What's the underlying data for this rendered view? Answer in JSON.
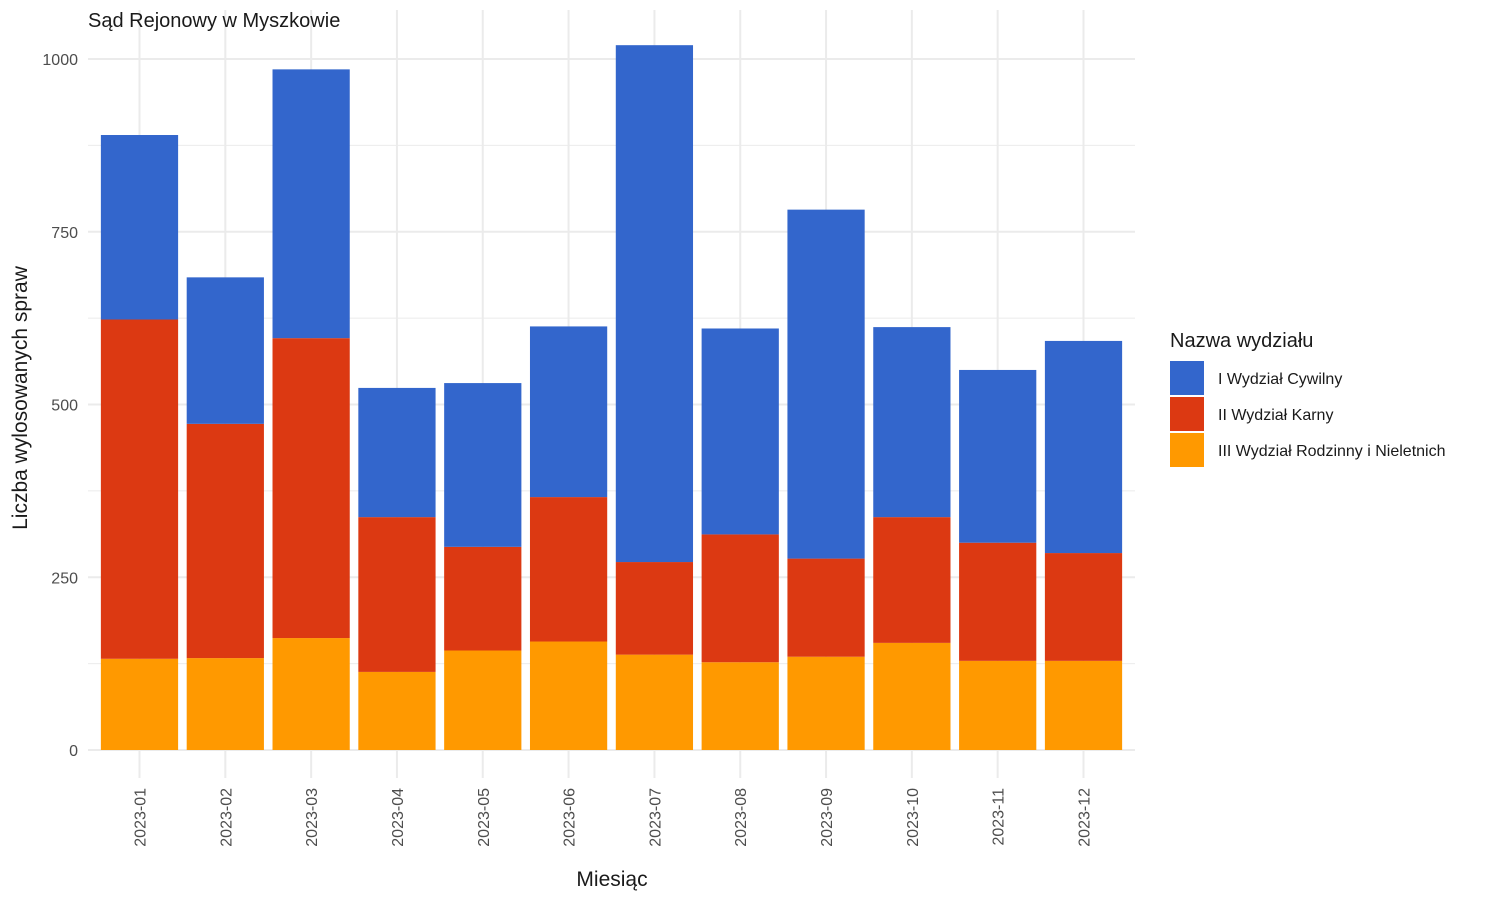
{
  "chart_data": {
    "type": "bar",
    "stacked": true,
    "title": "Sąd Rejonowy w Myszkowie",
    "xlabel": "Miesiąc",
    "ylabel": "Liczba wylosowanych spraw",
    "ylim": [
      0,
      1050
    ],
    "yticks": [
      "0",
      "250",
      "500",
      "750",
      "1000"
    ],
    "grid": true,
    "legend_position": "right",
    "legend_title": "Nazwa wydziału",
    "categories": [
      "2023-01",
      "2023-02",
      "2023-03",
      "2023-04",
      "2023-05",
      "2023-06",
      "2023-07",
      "2023-08",
      "2023-09",
      "2023-10",
      "2023-11",
      "2023-12"
    ],
    "series": [
      {
        "name": "I Wydział Cywilny",
        "color": "#3366CC",
        "values": [
          267,
          212,
          389,
          187,
          237,
          247,
          748,
          298,
          505,
          275,
          250,
          307
        ]
      },
      {
        "name": "II Wydział Karny",
        "color": "#DC3912",
        "values": [
          491,
          339,
          434,
          224,
          150,
          209,
          134,
          185,
          142,
          182,
          171,
          156
        ]
      },
      {
        "name": "III Wydział Rodzinny i Nieletnich",
        "color": "#FF9900",
        "values": [
          132,
          133,
          162,
          113,
          144,
          157,
          138,
          127,
          135,
          155,
          129,
          129
        ]
      }
    ]
  }
}
